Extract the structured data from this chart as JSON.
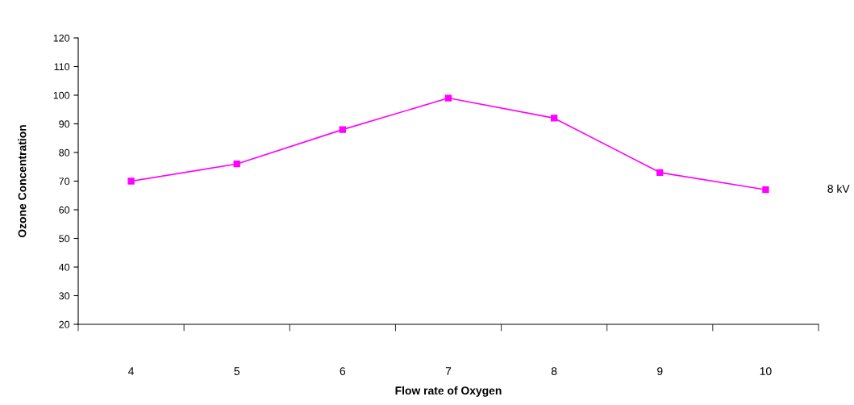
{
  "chart_data": {
    "type": "line",
    "xlabel": "Flow rate of Oxygen",
    "ylabel": "Ozone Concentration",
    "categories": [
      "4",
      "5",
      "6",
      "7",
      "8",
      "9",
      "10"
    ],
    "series": [
      {
        "name": "8 kV",
        "color": "#ff00ff",
        "values": [
          70,
          76,
          88,
          99,
          92,
          73,
          67
        ]
      }
    ],
    "ylim": [
      20,
      120
    ],
    "yticks": [
      20,
      30,
      40,
      50,
      60,
      70,
      80,
      90,
      100,
      110,
      120
    ],
    "grid": false,
    "legend": false,
    "marker": "square",
    "line_style": "solid"
  }
}
